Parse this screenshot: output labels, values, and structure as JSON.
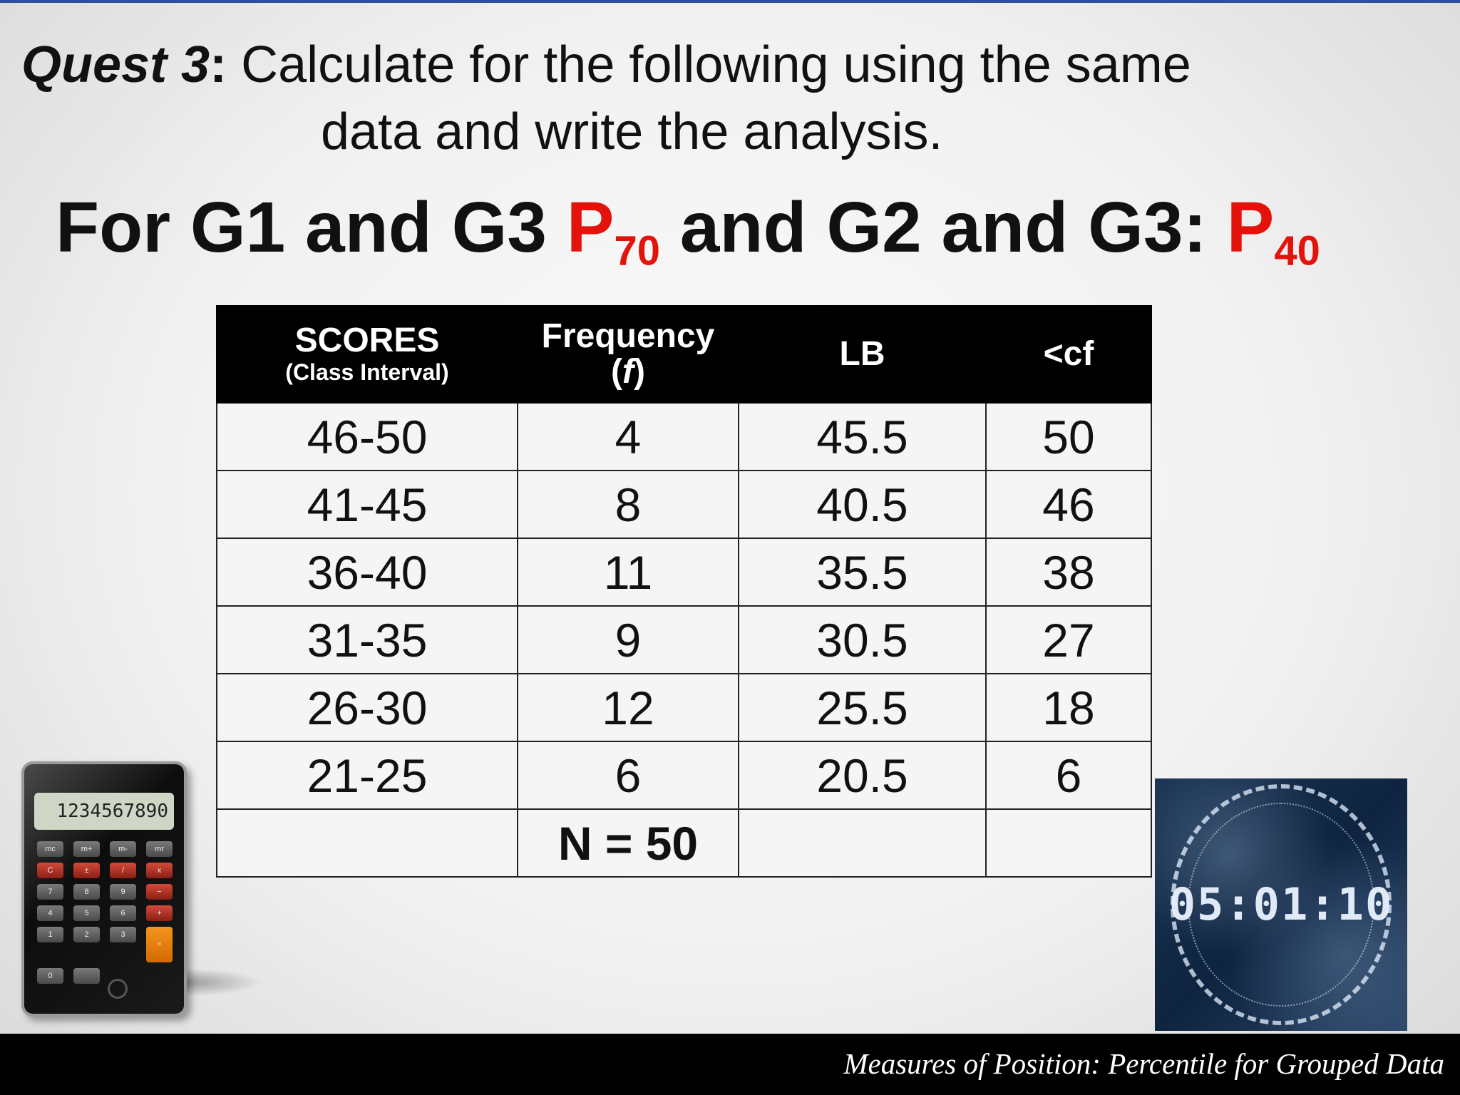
{
  "quest": {
    "label": "Quest 3",
    "colon": ":",
    "line1": " Calculate for the following using the same",
    "line2": "data and write the analysis."
  },
  "heading": {
    "part1": "For G1 and G3 ",
    "p1_letter": "P",
    "p1_sub": "70",
    "part2": " and G2 and G3: ",
    "p2_letter": "P",
    "p2_sub": "40"
  },
  "table": {
    "headers": {
      "scores": "SCORES",
      "scores_sub": "(Class Interval)",
      "frequency": "Frequency",
      "frequency_sub_open": "(",
      "frequency_sub_f": "f",
      "frequency_sub_close": ")",
      "lb": "LB",
      "cf": "<cf"
    },
    "rows": [
      {
        "scores": "46-50",
        "f": "4",
        "lb": "45.5",
        "cf": "50"
      },
      {
        "scores": "41-45",
        "f": "8",
        "lb": "40.5",
        "cf": "46"
      },
      {
        "scores": "36-40",
        "f": "11",
        "lb": "35.5",
        "cf": "38"
      },
      {
        "scores": "31-35",
        "f": "9",
        "lb": "30.5",
        "cf": "27"
      },
      {
        "scores": "26-30",
        "f": "12",
        "lb": "25.5",
        "cf": "18"
      },
      {
        "scores": "21-25",
        "f": "6",
        "lb": "20.5",
        "cf": "6"
      }
    ],
    "total": "N = 50"
  },
  "calculator": {
    "display": "1234567890",
    "keys": [
      "mc",
      "m+",
      "m-",
      "mr",
      "C",
      "±",
      "/",
      "x",
      "7",
      "8",
      "9",
      "−",
      "4",
      "5",
      "6",
      "+",
      "1",
      "2",
      "3",
      "=",
      "0",
      "",
      "",
      ""
    ]
  },
  "timer": {
    "display": "05:01:10"
  },
  "footer": {
    "text": "Measures of Position: Percentile for Grouped Data"
  },
  "colors": {
    "accent_red": "#e3120b",
    "header_black": "#000000",
    "top_rule": "#2d4f9c"
  }
}
